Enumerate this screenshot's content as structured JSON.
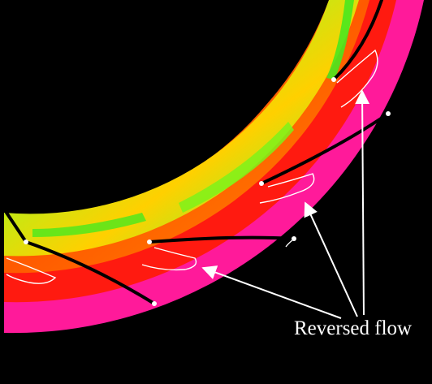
{
  "annotation": {
    "label": "Reversed flow"
  },
  "colors": {
    "background": "#000000",
    "outer_band": "#ff1a9a",
    "hot": "#ff1a10",
    "warm": "#ff6a00",
    "mid": "#ffd000",
    "cool": "#b6ff1a",
    "cooler": "#49e81e",
    "blade": "#000000",
    "outline": "#ffffff"
  },
  "icons": {
    "blade": "black-vane-line",
    "separation": "white-recirculation-contour",
    "pointer": "white-arrow"
  }
}
